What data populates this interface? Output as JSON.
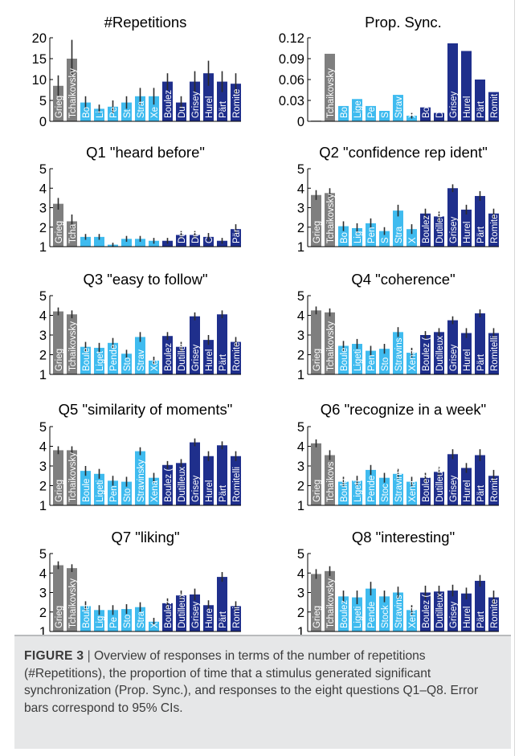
{
  "chart_data": [
    {
      "type": "bar",
      "title": "#Repetitions",
      "categories": [
        "Grieg",
        "Tchaikovsky",
        "Boulez",
        "Ligeti",
        "Penderecki",
        "Stockhausen",
        "Stravinsky",
        "Xenakis",
        "Boulez",
        "Dutilleux",
        "Grisey",
        "Hurel",
        "Pärt",
        "Romitelli"
      ],
      "bar_labels": [
        "Grieg",
        "Tchaikovsky",
        "Bo",
        "Li",
        "Pe",
        "St",
        "Stra",
        "Xe",
        "Boulez",
        "Du",
        "Grisey",
        "Hurel",
        "Pärt",
        "Romite"
      ],
      "values": [
        8.5,
        15,
        4.5,
        3,
        3.5,
        4.5,
        6,
        6,
        9.5,
        4.5,
        9.5,
        11.5,
        9.5,
        9
      ],
      "errors": [
        2.5,
        4.5,
        1.5,
        1,
        1.5,
        1.5,
        2,
        2,
        2,
        1.5,
        2.5,
        3,
        2.5,
        2.5
      ],
      "yticks": [
        0,
        5,
        10,
        15,
        20
      ],
      "ylim": [
        0,
        20
      ]
    },
    {
      "type": "bar",
      "title": "Prop. Sync.",
      "categories": [
        "Grieg",
        "Tchaikovsky",
        "Boulez",
        "Ligeti",
        "Penderecki",
        "Stockhausen",
        "Stravinsky",
        "Xenakis",
        "Boulez",
        "Dutilleux",
        "Grisey",
        "Hurel",
        "Pärt",
        "Romitelli"
      ],
      "bar_labels": [
        "Grie",
        "Tchaikovsky",
        "Bo",
        "Lige",
        "Pe",
        "S",
        "Strav",
        "X",
        "Bo",
        "D",
        "Grisey",
        "Hurel",
        "Pärt",
        "Romit"
      ],
      "values": [
        0.001,
        0.097,
        0.022,
        0.032,
        0.022,
        0.015,
        0.038,
        0.008,
        0.02,
        0.012,
        0.112,
        0.101,
        0.06,
        0.042
      ],
      "errors": [
        0,
        0,
        0,
        0,
        0,
        0,
        0,
        0.004,
        0,
        0,
        0,
        0,
        0,
        0
      ],
      "ytick_labels": [
        "0",
        "0.03",
        "0.06",
        "0.09",
        "0.12"
      ],
      "yticks": [
        0,
        0.03,
        0.06,
        0.09,
        0.12
      ],
      "ylim": [
        0,
        0.12
      ]
    },
    {
      "type": "bar",
      "title": "Q1 \"heard before\"",
      "categories": [
        "Grieg",
        "Tchaikovsky",
        "Boulez",
        "Ligeti",
        "Penderecki",
        "Stockhausen",
        "Stravinsky",
        "Xenakis",
        "Boulez",
        "Dutilleux",
        "Grisey",
        "Hurel",
        "Pärt",
        "Romitelli"
      ],
      "bar_labels": [
        "Grieg",
        "Tcha",
        "",
        "",
        "",
        "",
        "",
        "",
        "",
        "Du",
        "Dut",
        "C",
        "",
        "Pär"
      ],
      "values": [
        3.2,
        2.3,
        1.5,
        1.5,
        1.1,
        1.4,
        1.4,
        1.3,
        1.3,
        1.6,
        1.6,
        1.5,
        1.3,
        1.9
      ],
      "errors": [
        0.3,
        0.35,
        0.15,
        0.15,
        0.1,
        0.15,
        0.15,
        0.15,
        0.15,
        0.2,
        0.2,
        0.2,
        0.15,
        0.25
      ],
      "yticks": [
        1,
        2,
        3,
        4,
        5
      ],
      "ylim": [
        1,
        5
      ]
    },
    {
      "type": "bar",
      "title": "Q2 \"confidence rep ident\"",
      "categories": [
        "Grieg",
        "Tchaikovsky",
        "Boulez",
        "Ligeti",
        "Penderecki",
        "Stockhausen",
        "Stravinsky",
        "Xenakis",
        "Boulez",
        "Dutilleux",
        "Grisey",
        "Hurel",
        "Pärt",
        "Romitelli"
      ],
      "bar_labels": [
        "Grieg",
        "Tchaikovsky",
        "Bo",
        "Lig",
        "Pen",
        "S",
        "Stra",
        "X",
        "Boulez",
        "Dutilleux",
        "Grisey",
        "Hurel",
        "Pärt",
        "Romite"
      ],
      "values": [
        3.65,
        3.75,
        2.05,
        1.95,
        2.2,
        1.8,
        2.85,
        1.9,
        2.7,
        2.55,
        4.0,
        2.9,
        3.6,
        2.7
      ],
      "errors": [
        0.25,
        0.25,
        0.25,
        0.25,
        0.25,
        0.2,
        0.3,
        0.25,
        0.25,
        0.25,
        0.2,
        0.25,
        0.25,
        0.25
      ],
      "yticks": [
        1,
        2,
        3,
        4,
        5
      ],
      "ylim": [
        1,
        5
      ]
    },
    {
      "type": "bar",
      "title": "Q3 \"easy to follow\"",
      "categories": [
        "Grieg",
        "Tchaikovsky",
        "Boulez",
        "Ligeti",
        "Penderecki",
        "Stockhausen",
        "Stravinsky",
        "Xenakis",
        "Boulez",
        "Dutilleux",
        "Grisey",
        "Hurel",
        "Pärt",
        "Romitelli"
      ],
      "bar_labels": [
        "Grieg",
        "Tchaikovsky",
        "Boule",
        "Liget",
        "Pende",
        "Sto",
        "Strav",
        "Xe",
        "Boulez",
        "Dutilleux",
        "Grisey",
        "Hurel",
        "Pärt",
        "Romite"
      ],
      "values": [
        4.2,
        4.05,
        2.4,
        2.35,
        2.6,
        2.05,
        2.9,
        1.7,
        2.95,
        2.4,
        3.95,
        2.75,
        4.05,
        2.65
      ],
      "errors": [
        0.2,
        0.2,
        0.25,
        0.25,
        0.25,
        0.2,
        0.25,
        0.2,
        0.2,
        0.25,
        0.2,
        0.25,
        0.2,
        0.25
      ],
      "yticks": [
        1,
        2,
        3,
        4,
        5
      ],
      "ylim": [
        1,
        5
      ]
    },
    {
      "type": "bar",
      "title": "Q4 \"coherence\"",
      "categories": [
        "Grieg",
        "Tchaikovsky",
        "Boulez",
        "Ligeti",
        "Penderecki",
        "Stockhausen",
        "Stravinsky",
        "Xenakis",
        "Boulez",
        "Dutilleux",
        "Grisey",
        "Hurel",
        "Pärt",
        "Romitelli"
      ],
      "bar_labels": [
        "Grieg",
        "Tchaikovsky",
        "Boule",
        "Ligeti",
        "Pen",
        "Sto",
        "Stravins",
        "Xena",
        "Boulez (",
        "Dutilleux",
        "Grisey",
        "Hurel",
        "Pärt",
        "Romitelli"
      ],
      "values": [
        4.25,
        4.15,
        2.45,
        2.55,
        2.2,
        2.3,
        3.15,
        2.1,
        3.0,
        3.15,
        3.75,
        3.1,
        4.1,
        3.1
      ],
      "errors": [
        0.2,
        0.2,
        0.25,
        0.25,
        0.25,
        0.25,
        0.25,
        0.25,
        0.2,
        0.2,
        0.2,
        0.25,
        0.2,
        0.25
      ],
      "yticks": [
        1,
        2,
        3,
        4,
        5
      ],
      "ylim": [
        1,
        5
      ]
    },
    {
      "type": "bar",
      "title": "Q5 \"similarity of moments\"",
      "categories": [
        "Grieg",
        "Tchaikovsky",
        "Boulez",
        "Ligeti",
        "Penderecki",
        "Stockhausen",
        "Stravinsky",
        "Xenakis",
        "Boulez",
        "Dutilleux",
        "Grisey",
        "Hurel",
        "Pärt",
        "Romitelli"
      ],
      "bar_labels": [
        "Grieg",
        "Tchaikovsky",
        "Boule",
        "Ligeti",
        "Pen",
        "Sto",
        "Stravinsky",
        "Xena",
        "Boulez (",
        "Dutilleux",
        "Grisey",
        "Hurel",
        "Pärt",
        "Romitelli"
      ],
      "values": [
        3.8,
        3.8,
        2.75,
        2.6,
        2.25,
        2.2,
        3.75,
        2.4,
        3.05,
        3.15,
        4.2,
        3.5,
        4.05,
        3.5
      ],
      "errors": [
        0.2,
        0.2,
        0.25,
        0.25,
        0.25,
        0.25,
        0.2,
        0.25,
        0.2,
        0.2,
        0.2,
        0.25,
        0.2,
        0.25
      ],
      "yticks": [
        1,
        2,
        3,
        4,
        5
      ],
      "ylim": [
        1,
        5
      ]
    },
    {
      "type": "bar",
      "title": "Q6 \"recognize in a week\"",
      "categories": [
        "Grieg",
        "Tchaikovsky",
        "Boulez",
        "Ligeti",
        "Penderecki",
        "Stockhausen",
        "Stravinsky",
        "Xenakis",
        "Boulez",
        "Dutilleux",
        "Grisey",
        "Hurel",
        "Pärt",
        "Romitelli"
      ],
      "bar_labels": [
        "Grieg",
        "Tchaikovs",
        "Boule",
        "Ligeti",
        "Pende",
        "Stoc",
        "Stravins",
        "Xena",
        "Boulez",
        "Dutilleux",
        "Grisey",
        "Hurel",
        "Pärt",
        "Romit"
      ],
      "values": [
        4.15,
        3.55,
        2.2,
        2.25,
        2.8,
        2.4,
        2.6,
        2.2,
        2.4,
        2.7,
        3.6,
        2.9,
        3.55,
        2.5
      ],
      "errors": [
        0.2,
        0.25,
        0.25,
        0.25,
        0.25,
        0.25,
        0.25,
        0.25,
        0.25,
        0.25,
        0.25,
        0.25,
        0.3,
        0.3
      ],
      "yticks": [
        1,
        2,
        3,
        4,
        5
      ],
      "ylim": [
        1,
        5
      ]
    },
    {
      "type": "bar",
      "title": "Q7 \"liking\"",
      "categories": [
        "Grieg",
        "Tchaikovsky",
        "Boulez",
        "Ligeti",
        "Penderecki",
        "Stockhausen",
        "Stravinsky",
        "Xenakis",
        "Boulez",
        "Dutilleux",
        "Grisey",
        "Hurel",
        "Pärt",
        "Romitelli"
      ],
      "bar_labels": [
        "Grieg",
        "Tchaikovsky",
        "Boule",
        "Lig",
        "Pe",
        "Sto",
        "Stra",
        "X",
        "Boulez",
        "Dutilleux",
        "Grisey",
        "Hure",
        "Pärt",
        "Romi"
      ],
      "values": [
        4.4,
        4.25,
        2.3,
        2.1,
        2.1,
        2.15,
        2.25,
        1.5,
        2.45,
        2.85,
        2.9,
        2.35,
        3.8,
        2.3
      ],
      "errors": [
        0.2,
        0.2,
        0.25,
        0.25,
        0.25,
        0.25,
        0.25,
        0.2,
        0.25,
        0.25,
        0.3,
        0.25,
        0.25,
        0.25
      ],
      "yticks": [
        1,
        2,
        3,
        4,
        5
      ],
      "ylim": [
        1,
        5
      ]
    },
    {
      "type": "bar",
      "title": "Q8 \"interesting\"",
      "categories": [
        "Grieg",
        "Tchaikovsky",
        "Boulez",
        "Ligeti",
        "Penderecki",
        "Stockhausen",
        "Stravinsky",
        "Xenakis",
        "Boulez",
        "Dutilleux",
        "Grisey",
        "Hurel",
        "Pärt",
        "Romitelli"
      ],
      "bar_labels": [
        "Grieg",
        "Tchaikovsky",
        "Boulez",
        "Ligeti",
        "Pende",
        "Stock",
        "Stravins",
        "Xena",
        "Boulez (",
        "Dutilleux",
        "Grisey",
        "Hurel",
        "Pärt",
        "Romite"
      ],
      "values": [
        3.95,
        4.1,
        2.8,
        2.75,
        3.2,
        2.8,
        3.0,
        2.1,
        3.0,
        3.05,
        3.1,
        2.95,
        3.6,
        2.75
      ],
      "errors": [
        0.25,
        0.25,
        0.3,
        0.35,
        0.35,
        0.3,
        0.3,
        0.25,
        0.35,
        0.3,
        0.3,
        0.3,
        0.3,
        0.35
      ],
      "yticks": [
        1,
        2,
        3,
        4,
        5
      ],
      "ylim": [
        1,
        5
      ]
    }
  ],
  "colors": {
    "gray_bar": "#7f7f7f",
    "light_blue_bar": "#3fbbef",
    "dark_blue_bar": "#1f2f8c",
    "error_bar": "#2b2b2b",
    "axis": "#000000"
  },
  "caption": {
    "label": "FIGURE 3",
    "separator": " | ",
    "text": "Overview of responses in terms of the number of repetitions (#Repetitions), the proportion of time that a stimulus generated significant synchronization (Prop. Sync.), and responses to the eight questions Q1–Q8. Error bars correspond to 95% CIs."
  }
}
